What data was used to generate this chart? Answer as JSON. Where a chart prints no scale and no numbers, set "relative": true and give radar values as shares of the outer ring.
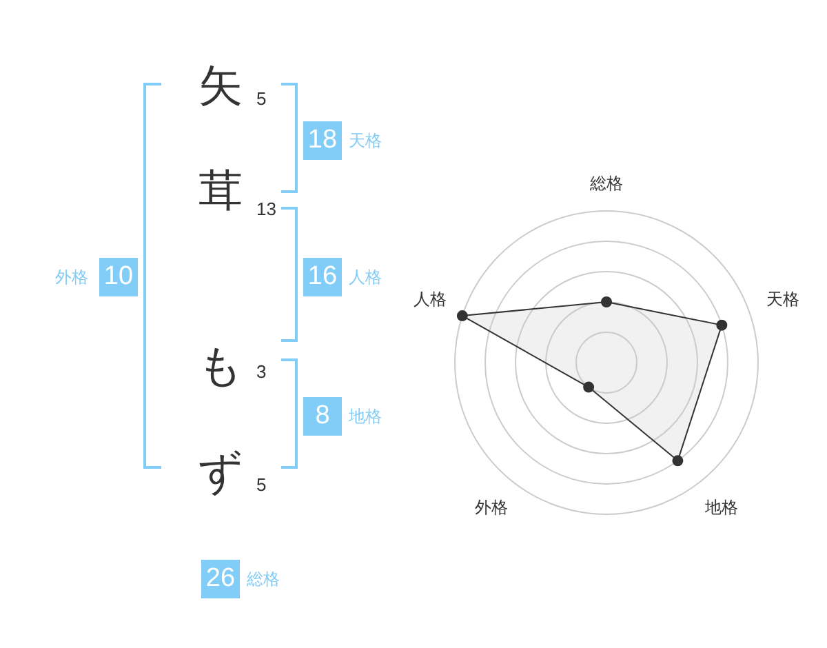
{
  "chart_data": [
    {
      "type": "other",
      "data_labels": true,
      "categories": [
        "矢",
        "茸",
        "も",
        "ず"
      ],
      "values": [
        5,
        13,
        3,
        5
      ]
    },
    {
      "type": "other",
      "data_labels": true,
      "color": "#82cdf8",
      "categories": [
        "天格",
        "人格",
        "地格",
        "外格",
        "総格"
      ],
      "values": [
        18,
        16,
        8,
        10,
        26
      ]
    },
    {
      "type": "radar",
      "relative": true,
      "grid": true,
      "categories": [
        "総格",
        "天格",
        "地格",
        "外格",
        "人格"
      ],
      "series": [
        {
          "color": "#333333",
          "values": [
            0.4,
            0.8,
            0.8,
            0.2,
            1.0
          ]
        }
      ]
    }
  ]
}
